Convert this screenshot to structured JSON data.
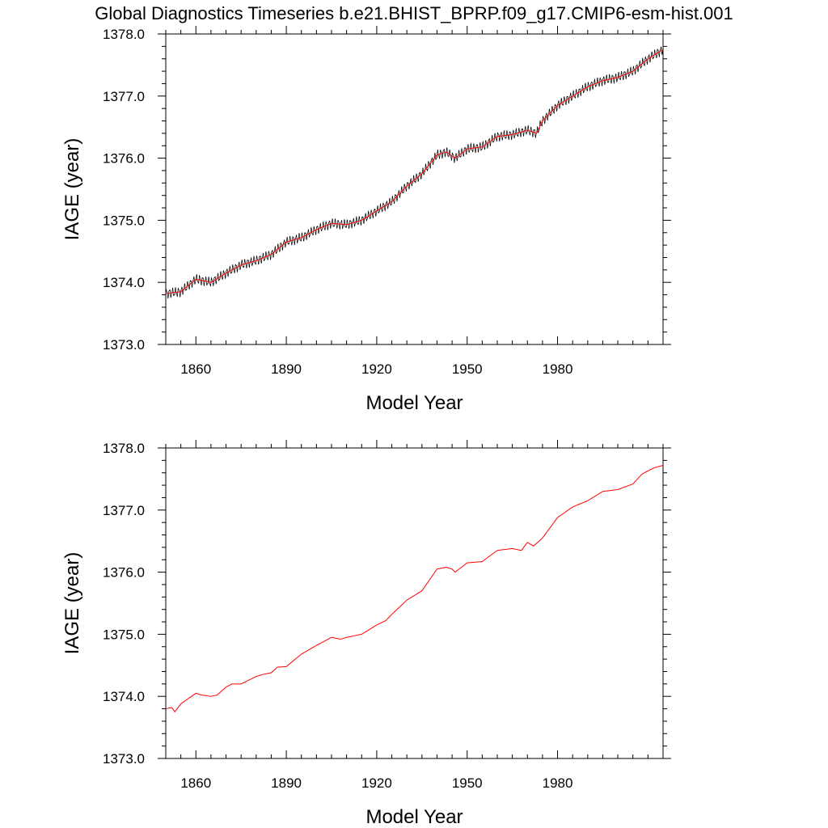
{
  "title": "Global Diagnostics Timeseries b.e21.BHIST_BPRP.f09_g17.CMIP6-esm-hist.001",
  "colors": {
    "raw_line": "#000000",
    "smoothed_line": "#ff0000",
    "axes": "#000000"
  },
  "chart_data": [
    {
      "type": "line",
      "panel": "top",
      "xlabel": "Model Year",
      "ylabel": "IAGE (year)",
      "xlim": [
        1850,
        2015
      ],
      "ylim": [
        1373.0,
        1378.0
      ],
      "x_ticks": [
        1860,
        1890,
        1920,
        1950,
        1980
      ],
      "y_ticks": [
        "1373.0",
        "1374.0",
        "1375.0",
        "1376.0",
        "1377.0",
        "1378.0"
      ],
      "grid": false,
      "note_series": "monthly values (black) with annual running mean (red) overlaid",
      "series": [
        {
          "color": "#000000",
          "style": "monthly oscillating",
          "x": [
            1850,
            1855,
            1860,
            1865,
            1870,
            1875,
            1880,
            1885,
            1890,
            1895,
            1900,
            1905,
            1910,
            1915,
            1920,
            1925,
            1930,
            1935,
            1940,
            1943,
            1946,
            1950,
            1955,
            1960,
            1965,
            1970,
            1973,
            1975,
            1980,
            1985,
            1990,
            1995,
            2000,
            2005,
            2010,
            2015
          ],
          "y": [
            1373.82,
            1373.85,
            1374.05,
            1374.0,
            1374.15,
            1374.28,
            1374.35,
            1374.45,
            1374.65,
            1374.72,
            1374.85,
            1374.95,
            1374.93,
            1375.0,
            1375.15,
            1375.3,
            1375.55,
            1375.75,
            1376.05,
            1376.1,
            1376.0,
            1376.15,
            1376.18,
            1376.35,
            1376.38,
            1376.45,
            1376.4,
            1376.6,
            1376.85,
            1377.0,
            1377.15,
            1377.25,
            1377.3,
            1377.4,
            1377.6,
            1377.75
          ],
          "amplitude": 0.06
        },
        {
          "color": "#ff0000",
          "style": "smoothed",
          "x": [
            1850,
            1855,
            1860,
            1865,
            1870,
            1875,
            1880,
            1885,
            1890,
            1895,
            1900,
            1905,
            1910,
            1915,
            1920,
            1925,
            1930,
            1935,
            1940,
            1943,
            1946,
            1950,
            1955,
            1960,
            1965,
            1970,
            1973,
            1975,
            1980,
            1985,
            1990,
            1995,
            2000,
            2005,
            2010,
            2015
          ],
          "y": [
            1373.82,
            1373.85,
            1374.05,
            1374.0,
            1374.15,
            1374.28,
            1374.35,
            1374.45,
            1374.65,
            1374.72,
            1374.85,
            1374.95,
            1374.93,
            1375.0,
            1375.15,
            1375.3,
            1375.55,
            1375.75,
            1376.05,
            1376.1,
            1376.0,
            1376.15,
            1376.18,
            1376.35,
            1376.38,
            1376.45,
            1376.4,
            1376.6,
            1376.85,
            1377.0,
            1377.15,
            1377.25,
            1377.3,
            1377.4,
            1377.6,
            1377.75
          ]
        }
      ]
    },
    {
      "type": "line",
      "panel": "bottom",
      "xlabel": "Model Year",
      "ylabel": "IAGE (year)",
      "xlim": [
        1850,
        2015
      ],
      "ylim": [
        1373.0,
        1378.0
      ],
      "x_ticks": [
        1860,
        1890,
        1920,
        1950,
        1980
      ],
      "y_ticks": [
        "1373.0",
        "1374.0",
        "1375.0",
        "1376.0",
        "1377.0",
        "1378.0"
      ],
      "grid": false,
      "series": [
        {
          "color": "#ff0000",
          "style": "smoothed",
          "x": [
            1850,
            1852,
            1853,
            1855,
            1860,
            1862,
            1865,
            1867,
            1870,
            1872,
            1875,
            1880,
            1882,
            1885,
            1887,
            1890,
            1895,
            1900,
            1905,
            1908,
            1910,
            1915,
            1920,
            1923,
            1925,
            1930,
            1935,
            1940,
            1943,
            1945,
            1946,
            1950,
            1955,
            1960,
            1965,
            1968,
            1970,
            1972,
            1975,
            1980,
            1985,
            1990,
            1995,
            2000,
            2005,
            2008,
            2012,
            2015
          ],
          "y": [
            1373.8,
            1373.82,
            1373.75,
            1373.88,
            1374.05,
            1374.02,
            1374.0,
            1374.02,
            1374.15,
            1374.2,
            1374.2,
            1374.32,
            1374.35,
            1374.38,
            1374.47,
            1374.48,
            1374.68,
            1374.82,
            1374.95,
            1374.92,
            1374.95,
            1375.0,
            1375.15,
            1375.22,
            1375.32,
            1375.55,
            1375.7,
            1376.05,
            1376.08,
            1376.05,
            1376.0,
            1376.15,
            1376.17,
            1376.35,
            1376.38,
            1376.35,
            1376.48,
            1376.42,
            1376.55,
            1376.88,
            1377.05,
            1377.15,
            1377.3,
            1377.33,
            1377.42,
            1377.58,
            1377.68,
            1377.72
          ]
        }
      ]
    }
  ]
}
